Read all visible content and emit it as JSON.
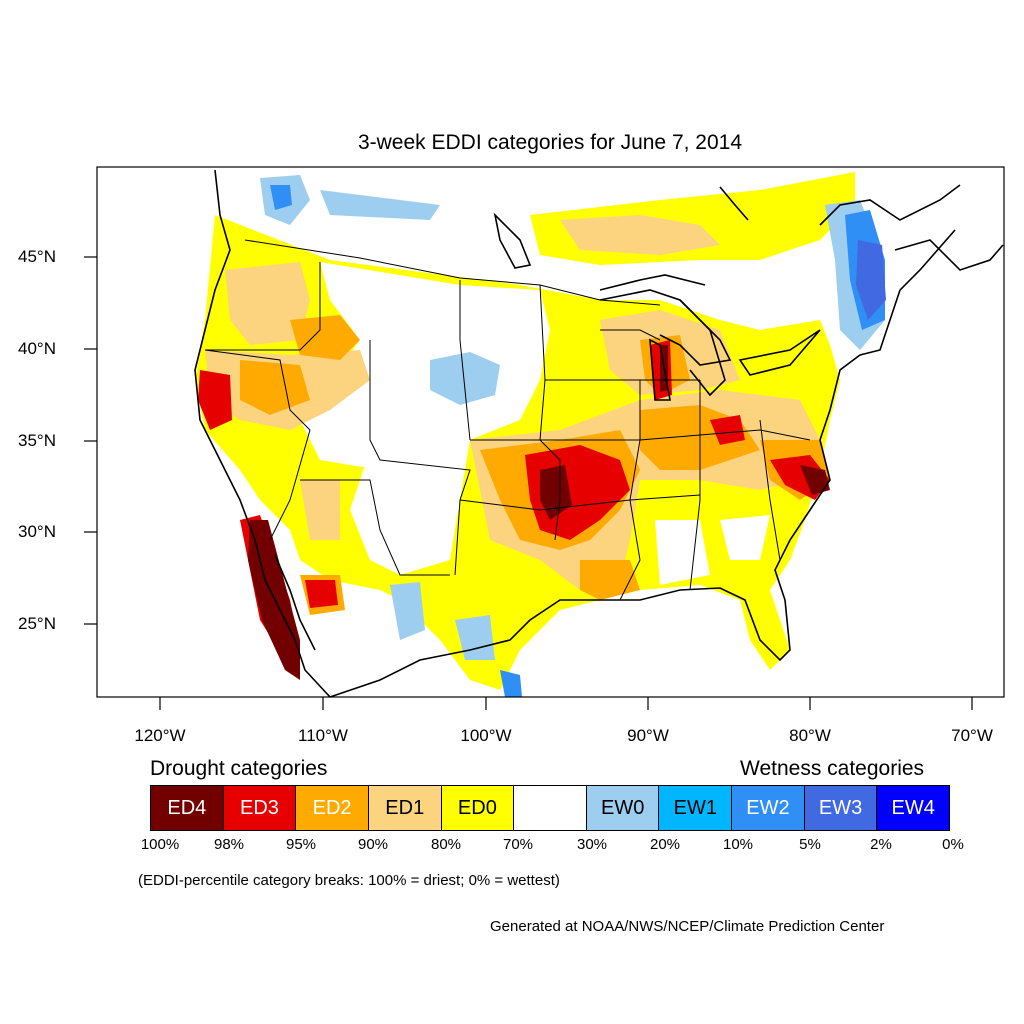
{
  "map": {
    "title": "3-week EDDI categories for June 7, 2014",
    "lat_labels": [
      "45°N",
      "40°N",
      "35°N",
      "30°N",
      "25°N"
    ],
    "lon_labels": [
      "120°W",
      "110°W",
      "100°W",
      "90°W",
      "80°W",
      "70°W"
    ]
  },
  "legend": {
    "drought_heading": "Drought categories",
    "wetness_heading": "Wetness categories",
    "categories": [
      {
        "label": "ED4",
        "color": "#730000",
        "text_color": "#ffffff"
      },
      {
        "label": "ED3",
        "color": "#e60000",
        "text_color": "#ffffff"
      },
      {
        "label": "ED2",
        "color": "#ffaa00",
        "text_color": "#ffffff"
      },
      {
        "label": "ED1",
        "color": "#fcd37f",
        "text_color": "#000000"
      },
      {
        "label": "ED0",
        "color": "#ffff00",
        "text_color": "#000000"
      },
      {
        "label": "",
        "color": "#ffffff",
        "text_color": "#000000"
      },
      {
        "label": "EW0",
        "color": "#9dcdef",
        "text_color": "#000000"
      },
      {
        "label": "EW1",
        "color": "#00b7ff",
        "text_color": "#000000"
      },
      {
        "label": "EW2",
        "color": "#2f8ff5",
        "text_color": "#ffffff"
      },
      {
        "label": "EW3",
        "color": "#4169e1",
        "text_color": "#ffffff"
      },
      {
        "label": "EW4",
        "color": "#0000ff",
        "text_color": "#ffffff"
      }
    ],
    "percentiles": [
      "100%",
      "98%",
      "95%",
      "90%",
      "80%",
      "70%",
      "30%",
      "20%",
      "10%",
      "5%",
      "2%",
      "0%"
    ],
    "note": "(EDDI-percentile category breaks: 100% = driest; 0% = wettest)"
  },
  "credit": "Generated at NOAA/NWS/NCEP/Climate Prediction Center"
}
